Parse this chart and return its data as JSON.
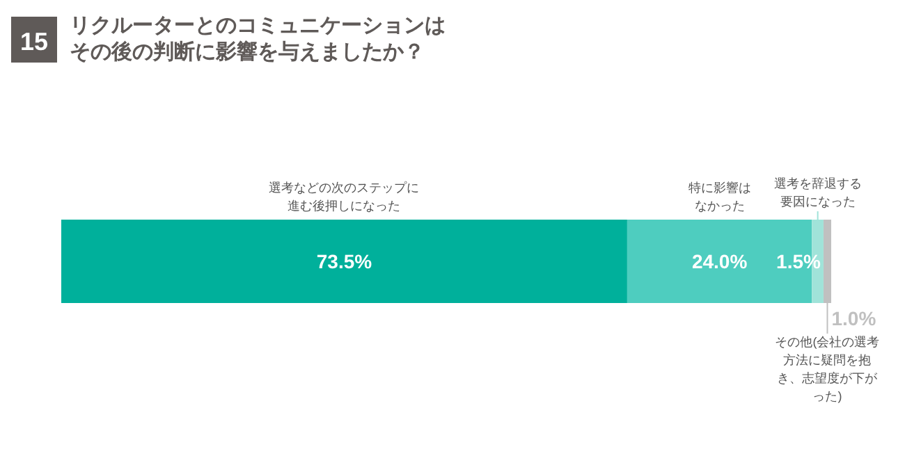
{
  "chart_data": {
    "type": "bar",
    "title": "リクルーターとのコミュニケーションはその後の判断に影響を与えましたか？",
    "annotations": [
      "15"
    ],
    "categories": [
      null
    ],
    "orientation": "horizontal",
    "stacked": true,
    "xlim": [
      0,
      100
    ],
    "tick_labels": false,
    "legend": false,
    "series": [
      {
        "name": "選考などの次のステップに進む後押しになった",
        "color": "#00b09b",
        "values": [
          73.5
        ],
        "value_labels": [
          "73.5%"
        ]
      },
      {
        "name": "特に影響はなかった",
        "color": "#4ecdbf",
        "values": [
          24.0
        ],
        "value_labels": [
          "24.0%"
        ]
      },
      {
        "name": "選考を辞退する要因になった",
        "color": "#a0e3d9",
        "values": [
          1.5
        ],
        "value_labels": [
          "1.5%"
        ]
      },
      {
        "name": "その他(会社の選考方法に疑問を抱き、志望度が下がった)",
        "color": "#c0c0c0",
        "values": [
          1.0
        ],
        "value_labels": [
          "1.0%"
        ]
      }
    ]
  }
}
